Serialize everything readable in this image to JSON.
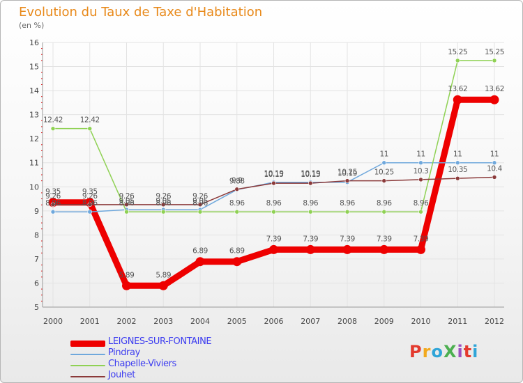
{
  "title": "Evolution du Taux de Taxe d'Habitation",
  "unit_label": "(en %)",
  "logo": {
    "text": "ProXiti",
    "colors": [
      "#e33a2e",
      "#f2a91e",
      "#2fa5d8",
      "#4caf50",
      "#9c4fc0",
      "#e33a2e",
      "#2fa5d8"
    ]
  },
  "chart_data": {
    "type": "line",
    "title": "Evolution du Taux de Taxe d'Habitation",
    "ylabel": "(en %)",
    "xlabel": "",
    "categories": [
      "2000",
      "2001",
      "2002",
      "2003",
      "2004",
      "2005",
      "2006",
      "2007",
      "2008",
      "2009",
      "2010",
      "2011",
      "2012"
    ],
    "ylim": [
      5,
      16
    ],
    "yticks": [
      "5",
      "6",
      "7",
      "8",
      "9",
      "10",
      "11",
      "12",
      "13",
      "14",
      "15",
      "16"
    ],
    "grid": true,
    "series": [
      {
        "name": "LEIGNES-SUR-FONTAINE",
        "color": "#ee0000",
        "width": 9,
        "values": [
          9.35,
          9.35,
          5.89,
          5.89,
          6.89,
          6.89,
          7.39,
          7.39,
          7.39,
          7.39,
          7.39,
          13.62,
          13.62
        ],
        "labels": [
          "9.35",
          "9.35",
          "5.89",
          "5.89",
          "6.89",
          "6.89",
          "7.39",
          "7.39",
          "7.39",
          "7.39",
          "7.39",
          "13.62",
          "13.62"
        ]
      },
      {
        "name": "Pindray",
        "color": "#6fa8dc",
        "width": 1.5,
        "values": [
          8.96,
          8.96,
          9.05,
          9.05,
          9.05,
          9.88,
          10.19,
          10.19,
          10.19,
          11,
          11,
          11,
          11
        ],
        "labels": [
          "8.96",
          "8.96",
          "9.05",
          "9.05",
          "9.05",
          "9.88",
          "10.19",
          "10.19",
          "10.19",
          "11",
          "11",
          "11",
          "11"
        ]
      },
      {
        "name": "Chapelle-Viviers",
        "color": "#8fd154",
        "width": 1.5,
        "values": [
          12.42,
          12.42,
          8.96,
          8.96,
          8.96,
          8.96,
          8.96,
          8.96,
          8.96,
          8.96,
          8.96,
          15.25,
          15.25
        ],
        "labels": [
          "12.42",
          "12.42",
          "8.96",
          "8.96",
          "8.96",
          "8.96",
          "8.96",
          "8.96",
          "8.96",
          "8.96",
          "8.96",
          "15.25",
          "15.25"
        ]
      },
      {
        "name": "Jouhet",
        "color": "#8b3a3a",
        "width": 1.5,
        "values": [
          9.26,
          9.26,
          9.26,
          9.26,
          9.26,
          9.9,
          10.15,
          10.15,
          10.25,
          10.25,
          10.3,
          10.35,
          10.4
        ],
        "labels": [
          "9.26",
          "9.26",
          "9.26",
          "9.26",
          "9.26",
          "9.9",
          "10.15",
          "10.15",
          "10.25",
          "10.25",
          "10.3",
          "10.35",
          "10.4"
        ]
      }
    ],
    "legend_position": "bottom-left"
  }
}
